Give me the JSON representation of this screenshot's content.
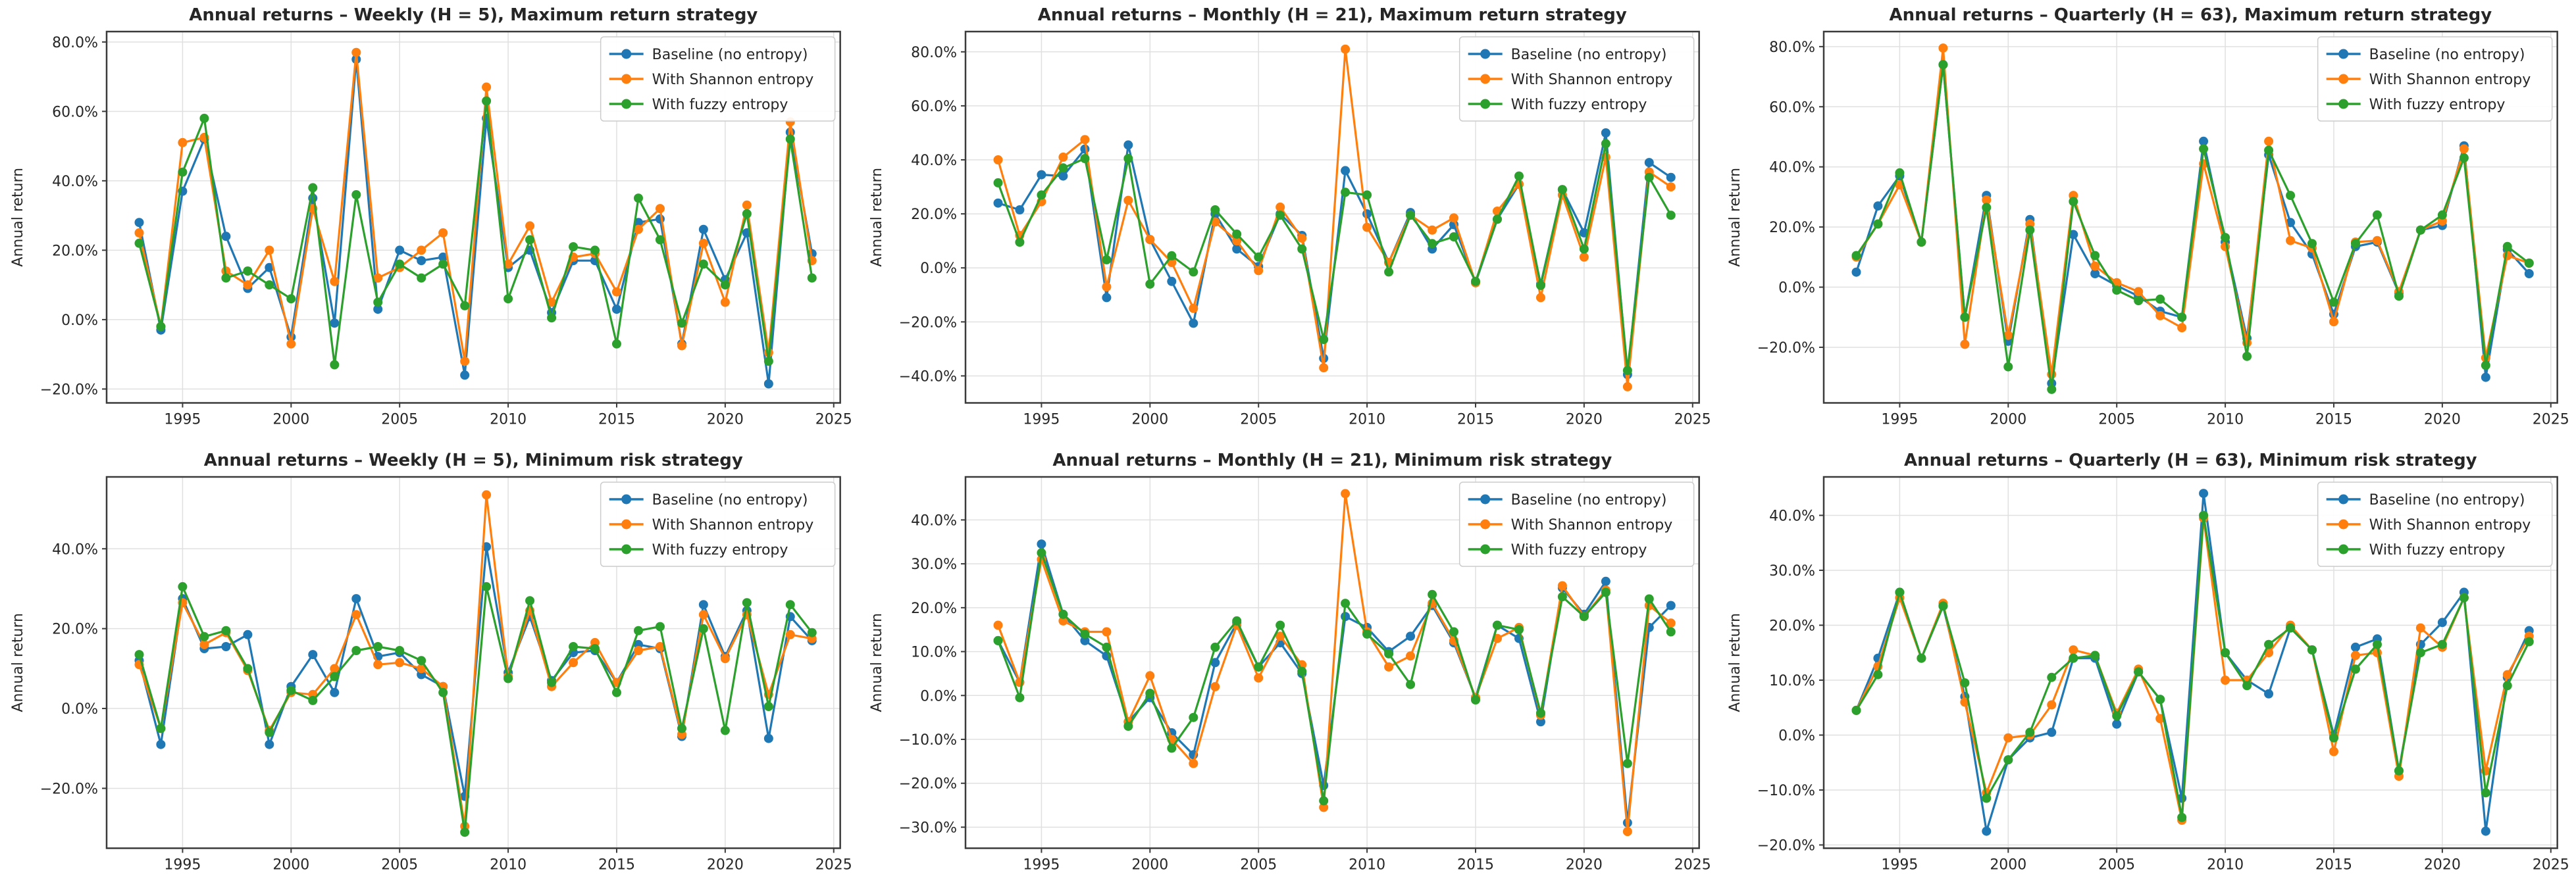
{
  "style": {
    "background": "#ffffff",
    "grid_color": "#e0e0e0",
    "spine_color": "#3b3b3b",
    "text_color": "#262626",
    "legend_border": "#cccccc",
    "legend_background": "#ffffff",
    "series_colors": {
      "baseline": "#1f77b4",
      "shannon": "#ff7f0e",
      "fuzzy": "#2ca02c"
    }
  },
  "chart_data": [
    {
      "type": "line",
      "title": "Annual returns – Weekly (H = 5), Maximum return strategy",
      "xlabel": "",
      "ylabel": "Annual return",
      "x": [
        1993,
        1994,
        1995,
        1996,
        1997,
        1998,
        1999,
        2000,
        2001,
        2002,
        2003,
        2004,
        2005,
        2006,
        2007,
        2008,
        2009,
        2010,
        2011,
        2012,
        2013,
        2014,
        2015,
        2016,
        2017,
        2018,
        2019,
        2020,
        2021,
        2022,
        2023,
        2024
      ],
      "xticks": [
        1995,
        2000,
        2005,
        2010,
        2015,
        2020,
        2025
      ],
      "yticks": [
        80,
        60,
        40,
        20,
        0,
        -20
      ],
      "xlim": [
        1991.5,
        2025.3
      ],
      "ylim": [
        -24,
        83
      ],
      "ytick_format": "percent_1dp",
      "grid": true,
      "legend_position": "upper right",
      "series": [
        {
          "name": "Baseline (no entropy)",
          "color": "#1f77b4",
          "values": [
            28,
            -3,
            37,
            52,
            24,
            9,
            15,
            -5,
            35,
            -1,
            75,
            3,
            20,
            17,
            18,
            -16,
            58,
            15,
            20,
            2,
            17,
            17,
            3,
            28,
            29,
            -7,
            26,
            11.5,
            25,
            -18.5,
            54,
            19
          ]
        },
        {
          "name": "With Shannon entropy",
          "color": "#ff7f0e",
          "values": [
            25,
            -2,
            51,
            52.5,
            14,
            10,
            20,
            -7,
            32,
            11,
            77,
            12,
            15,
            20,
            25,
            -12,
            67,
            16,
            27,
            5,
            18,
            19,
            8,
            26,
            32,
            -7.5,
            22,
            5,
            33,
            -9.5,
            57,
            17
          ]
        },
        {
          "name": "With fuzzy entropy",
          "color": "#2ca02c",
          "values": [
            22,
            -2,
            42.5,
            58,
            12,
            14,
            10,
            6,
            38,
            -13,
            36,
            5,
            16,
            12,
            16,
            4,
            63,
            6,
            23,
            0.5,
            21,
            20,
            -7,
            35,
            23,
            -1,
            16,
            10,
            30.5,
            -12,
            52,
            12
          ]
        }
      ]
    },
    {
      "type": "line",
      "title": "Annual returns – Monthly (H = 21), Maximum return strategy",
      "xlabel": "",
      "ylabel": "Annual return",
      "x": [
        1993,
        1994,
        1995,
        1996,
        1997,
        1998,
        1999,
        2000,
        2001,
        2002,
        2003,
        2004,
        2005,
        2006,
        2007,
        2008,
        2009,
        2010,
        2011,
        2012,
        2013,
        2014,
        2015,
        2016,
        2017,
        2018,
        2019,
        2020,
        2021,
        2022,
        2023,
        2024
      ],
      "xticks": [
        1995,
        2000,
        2005,
        2010,
        2015,
        2020,
        2025
      ],
      "yticks": [
        80,
        60,
        40,
        20,
        0,
        -20,
        -40
      ],
      "xlim": [
        1991.5,
        2025.3
      ],
      "ylim": [
        -50,
        87.5
      ],
      "ytick_format": "percent_1dp",
      "grid": true,
      "legend_position": "upper right",
      "series": [
        {
          "name": "Baseline (no entropy)",
          "color": "#1f77b4",
          "values": [
            24,
            21.5,
            34.5,
            34,
            44,
            -11,
            45.5,
            10.5,
            -5,
            -20.5,
            20,
            7,
            0.5,
            20,
            12,
            -33.5,
            36,
            20,
            2,
            20.5,
            7,
            16,
            -5.5,
            18,
            31,
            -6,
            29,
            13,
            50,
            -39.5,
            39,
            33.5
          ]
        },
        {
          "name": "With Shannon entropy",
          "color": "#ff7f0e",
          "values": [
            40,
            12,
            24.5,
            41,
            47.5,
            -7,
            25,
            10.5,
            2,
            -15,
            17,
            10,
            -1,
            22.5,
            11,
            -37,
            81,
            15,
            2,
            19.5,
            14,
            18.5,
            -5.5,
            21,
            31,
            -11,
            27,
            4,
            41,
            -44,
            35.5,
            30
          ]
        },
        {
          "name": "With fuzzy entropy",
          "color": "#2ca02c",
          "values": [
            31.5,
            9.5,
            27,
            37,
            40.5,
            3,
            40.5,
            -6,
            4.5,
            -1.5,
            21.5,
            12.5,
            4,
            19.5,
            7,
            -26.5,
            28,
            27,
            -1.5,
            19.5,
            9,
            11.5,
            -5,
            18,
            34,
            -6.5,
            29,
            7,
            46,
            -38,
            33.5,
            19.5
          ]
        }
      ]
    },
    {
      "type": "line",
      "title": "Annual returns – Quarterly (H = 63), Maximum return strategy",
      "xlabel": "",
      "ylabel": "Annual return",
      "x": [
        1993,
        1994,
        1995,
        1996,
        1997,
        1998,
        1999,
        2000,
        2001,
        2002,
        2003,
        2004,
        2005,
        2006,
        2007,
        2008,
        2009,
        2010,
        2011,
        2012,
        2013,
        2014,
        2015,
        2016,
        2017,
        2018,
        2019,
        2020,
        2021,
        2022,
        2023,
        2024
      ],
      "xticks": [
        1995,
        2000,
        2005,
        2010,
        2015,
        2020,
        2025
      ],
      "yticks": [
        80,
        60,
        40,
        20,
        0,
        -20
      ],
      "xlim": [
        1991.5,
        2025.3
      ],
      "ylim": [
        -38.5,
        85
      ],
      "ytick_format": "percent_1dp",
      "grid": true,
      "legend_position": "upper right",
      "series": [
        {
          "name": "Baseline (no entropy)",
          "color": "#1f77b4",
          "values": [
            5,
            27,
            37,
            15,
            74,
            -10,
            30.5,
            -18,
            22.5,
            -32,
            17.5,
            4.5,
            0.5,
            -3,
            -8,
            -10,
            48.5,
            15,
            -17,
            44,
            21.5,
            11,
            -9,
            13.5,
            15,
            -2,
            19,
            20.5,
            47,
            -30,
            12.5,
            4.5
          ]
        },
        {
          "name": "With Shannon entropy",
          "color": "#ff7f0e",
          "values": [
            10,
            21,
            34,
            15,
            79.5,
            -19,
            29,
            -16,
            21,
            -29,
            30.5,
            7,
            1.5,
            -1.5,
            -9.5,
            -13.5,
            41,
            13.5,
            -18.5,
            48.5,
            15.5,
            13,
            -11.5,
            15,
            15.5,
            -1.5,
            19,
            22,
            46,
            -23.5,
            10.5,
            8
          ]
        },
        {
          "name": "With fuzzy entropy",
          "color": "#2ca02c",
          "values": [
            10.5,
            21,
            38,
            15,
            74,
            -10,
            26.5,
            -26.5,
            19,
            -34,
            28.5,
            10.5,
            -1,
            -4.5,
            -4,
            -10,
            46,
            16.5,
            -23,
            45.5,
            30.5,
            14.5,
            -5,
            14.5,
            24,
            -3,
            19,
            24,
            43,
            -26,
            13.5,
            8
          ]
        }
      ]
    },
    {
      "type": "line",
      "title": "Annual returns – Weekly (H = 5), Minimum risk strategy",
      "xlabel": "",
      "ylabel": "Annual return",
      "x": [
        1993,
        1994,
        1995,
        1996,
        1997,
        1998,
        1999,
        2000,
        2001,
        2002,
        2003,
        2004,
        2005,
        2006,
        2007,
        2008,
        2009,
        2010,
        2011,
        2012,
        2013,
        2014,
        2015,
        2016,
        2017,
        2018,
        2019,
        2020,
        2021,
        2022,
        2023,
        2024
      ],
      "xticks": [
        1995,
        2000,
        2005,
        2010,
        2015,
        2020,
        2025
      ],
      "yticks": [
        40,
        20,
        0,
        -20
      ],
      "xlim": [
        1991.5,
        2025.3
      ],
      "ylim": [
        -35,
        58
      ],
      "ytick_format": "percent_1dp",
      "grid": true,
      "legend_position": "upper right",
      "series": [
        {
          "name": "Baseline (no entropy)",
          "color": "#1f77b4",
          "values": [
            12,
            -9,
            27.5,
            15,
            15.5,
            18.5,
            -9,
            5.5,
            13.5,
            4,
            27.5,
            13,
            14,
            8.5,
            5.5,
            -22,
            40.5,
            9,
            23,
            7,
            14,
            14.5,
            6.5,
            16,
            15,
            -7,
            26,
            13,
            24.5,
            -7.5,
            23,
            17
          ]
        },
        {
          "name": "With Shannon entropy",
          "color": "#ff7f0e",
          "values": [
            11,
            -5,
            26.5,
            16,
            19,
            9.5,
            -5.5,
            4,
            3.5,
            10,
            23.5,
            11,
            11.5,
            10,
            5.5,
            -29.5,
            53.5,
            8,
            24.5,
            5.5,
            11.5,
            16.5,
            6.5,
            14.5,
            15.5,
            -6.5,
            23.5,
            12.5,
            23.5,
            3.5,
            18.5,
            17.5
          ]
        },
        {
          "name": "With fuzzy entropy",
          "color": "#2ca02c",
          "values": [
            13.5,
            -5,
            30.5,
            18,
            19.5,
            10,
            -6,
            4.5,
            2,
            8,
            14.5,
            15.5,
            14.5,
            12,
            4,
            -31,
            30.5,
            7.5,
            27,
            6.5,
            15.5,
            15,
            4,
            19.5,
            20.5,
            -5,
            20,
            -5.5,
            26.5,
            0.5,
            26,
            19
          ]
        }
      ]
    },
    {
      "type": "line",
      "title": "Annual returns – Monthly (H = 21), Minimum risk strategy",
      "xlabel": "",
      "ylabel": "Annual return",
      "x": [
        1993,
        1994,
        1995,
        1996,
        1997,
        1998,
        1999,
        2000,
        2001,
        2002,
        2003,
        2004,
        2005,
        2006,
        2007,
        2008,
        2009,
        2010,
        2011,
        2012,
        2013,
        2014,
        2015,
        2016,
        2017,
        2018,
        2019,
        2020,
        2021,
        2022,
        2023,
        2024
      ],
      "xticks": [
        1995,
        2000,
        2005,
        2010,
        2015,
        2020,
        2025
      ],
      "yticks": [
        40,
        30,
        20,
        10,
        0,
        -10,
        -20,
        -30
      ],
      "xlim": [
        1991.5,
        2025.3
      ],
      "ylim": [
        -34.8,
        49.8
      ],
      "ytick_format": "percent_1dp",
      "grid": true,
      "legend_position": "upper right",
      "series": [
        {
          "name": "Baseline (no entropy)",
          "color": "#1f77b4",
          "values": [
            12.5,
            3,
            34.5,
            18.5,
            12.5,
            9,
            -6,
            -0.5,
            -8.5,
            -13.5,
            7.5,
            16.5,
            6.5,
            12,
            5,
            -20.5,
            18,
            15.5,
            10,
            13.5,
            20.5,
            12,
            -0.5,
            16,
            13,
            -6,
            24.5,
            18.5,
            26,
            -29,
            15.5,
            20.5
          ]
        },
        {
          "name": "With Shannon entropy",
          "color": "#ff7f0e",
          "values": [
            16,
            3,
            31,
            17,
            14.5,
            14.5,
            -6,
            4.5,
            -10,
            -15.5,
            2,
            16,
            4,
            13.5,
            7,
            -25.5,
            46,
            14.5,
            6.5,
            9,
            21,
            12.5,
            -0.5,
            13,
            15.5,
            -4.5,
            25,
            18,
            24,
            -31,
            20.5,
            16.5
          ]
        },
        {
          "name": "With fuzzy entropy",
          "color": "#2ca02c",
          "values": [
            12.5,
            -0.5,
            32.5,
            18.5,
            14,
            11,
            -7,
            0.5,
            -12,
            -5,
            11,
            17,
            6.5,
            16,
            5.5,
            -24,
            21,
            14,
            9.5,
            2.5,
            23,
            14.5,
            -1,
            16,
            15,
            -4,
            22.5,
            18,
            23.5,
            -15.5,
            22,
            14.5
          ]
        }
      ]
    },
    {
      "type": "line",
      "title": "Annual returns – Quarterly (H = 63), Minimum risk strategy",
      "xlabel": "",
      "ylabel": "Annual return",
      "x": [
        1993,
        1994,
        1995,
        1996,
        1997,
        1998,
        1999,
        2000,
        2001,
        2002,
        2003,
        2004,
        2005,
        2006,
        2007,
        2008,
        2009,
        2010,
        2011,
        2012,
        2013,
        2014,
        2015,
        2016,
        2017,
        2018,
        2019,
        2020,
        2021,
        2022,
        2023,
        2024
      ],
      "xticks": [
        1995,
        2000,
        2005,
        2010,
        2015,
        2020,
        2025
      ],
      "yticks": [
        40,
        30,
        20,
        10,
        0,
        -10,
        -20
      ],
      "xlim": [
        1991.5,
        2025.3
      ],
      "ylim": [
        -20.6,
        47
      ],
      "ytick_format": "percent_1dp",
      "grid": true,
      "legend_position": "upper right",
      "series": [
        {
          "name": "Baseline (no entropy)",
          "color": "#1f77b4",
          "values": [
            4.5,
            14,
            26,
            14,
            23.5,
            7,
            -17.5,
            -4.5,
            -0.5,
            0.5,
            14,
            14,
            2,
            11.5,
            6.5,
            -11.5,
            44,
            15,
            10,
            7.5,
            19.5,
            15.5,
            0,
            16,
            17.5,
            -6.5,
            16.5,
            20.5,
            26,
            -17.5,
            10.5,
            19
          ]
        },
        {
          "name": "With Shannon entropy",
          "color": "#ff7f0e",
          "values": [
            4.5,
            12.5,
            25,
            14,
            24,
            6,
            -10.5,
            -0.5,
            0,
            5.5,
            15.5,
            14.5,
            4,
            12,
            3,
            -15.5,
            39.5,
            10,
            10,
            15,
            20,
            15.5,
            -3,
            14.5,
            15,
            -7.5,
            19.5,
            16,
            25,
            -6.5,
            11,
            18
          ]
        },
        {
          "name": "With fuzzy entropy",
          "color": "#2ca02c",
          "values": [
            4.5,
            11,
            26,
            14,
            23.5,
            9.5,
            -11.5,
            -4.5,
            0.5,
            10.5,
            14,
            14.5,
            3.5,
            11.5,
            6.5,
            -15,
            40,
            15,
            9,
            16.5,
            19.5,
            15.5,
            -0.5,
            12,
            16.5,
            -6.5,
            15,
            16.5,
            25,
            -10.5,
            9,
            17
          ]
        }
      ]
    }
  ]
}
